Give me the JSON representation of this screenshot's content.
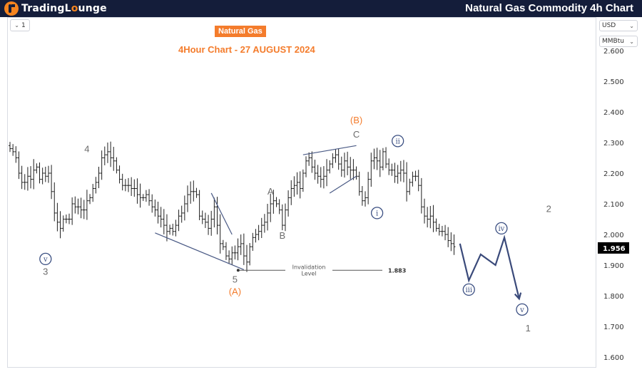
{
  "header": {
    "logo_left": "TradingL",
    "logo_right": "unge",
    "title": "Natural Gas Commodity 4h Chart"
  },
  "toolbar": {
    "interval": "1",
    "currency": "USD",
    "unit": "MMBtu"
  },
  "chart_title": {
    "badge": "Natural Gas",
    "subtitle": "4Hour Chart - 27 AUGUST 2024"
  },
  "colors": {
    "bar": "#1f1f1f",
    "wave_line": "#4a5a85",
    "projection": "#3a4a7a",
    "orange": "#f47c2c",
    "gray_label": "#6b6b6b",
    "circle_label": "#3b4f82",
    "price_tag": "#000000"
  },
  "chart_data": {
    "type": "ohlc",
    "yscale": "linear",
    "ylim": [
      1.6,
      2.6
    ],
    "yticks": [
      "1.600",
      "1.700",
      "1.800",
      "1.900",
      "2.000",
      "2.100",
      "2.200",
      "2.300",
      "2.400",
      "2.500",
      "2.600"
    ],
    "last_price": "1.956",
    "series": [
      {
        "name": "",
        "closes": [
          2.28,
          2.27,
          2.25,
          2.2,
          2.17,
          2.17,
          2.19,
          2.18,
          2.21,
          2.22,
          2.18,
          2.2,
          2.19,
          2.2,
          2.14,
          2.07,
          2.04,
          2.02,
          2.05,
          2.05,
          2.05,
          2.1,
          2.09,
          2.09,
          2.08,
          2.08,
          2.11,
          2.12,
          2.15,
          2.17,
          2.2,
          2.25,
          2.26,
          2.27,
          2.25,
          2.24,
          2.21,
          2.18,
          2.16,
          2.16,
          2.16,
          2.15,
          2.15,
          2.13,
          2.12,
          2.12,
          2.13,
          2.11,
          2.09,
          2.08,
          2.06,
          2.05,
          2.03,
          2.01,
          2.02,
          2.01,
          2.03,
          2.06,
          2.07,
          2.1,
          2.13,
          2.14,
          2.14,
          2.13,
          2.06,
          2.05,
          2.04,
          2.02,
          2.05,
          2.09,
          2.03,
          1.97,
          1.96,
          1.93,
          1.92,
          1.94,
          1.94,
          1.96,
          1.97,
          1.93,
          1.91,
          1.96,
          1.99,
          2.0,
          2.01,
          2.03,
          2.04,
          2.07,
          2.1,
          2.11,
          2.1,
          2.08,
          2.03,
          2.08,
          2.12,
          2.15,
          2.16,
          2.17,
          2.15,
          2.2,
          2.24,
          2.25,
          2.22,
          2.2,
          2.19,
          2.18,
          2.19,
          2.21,
          2.23,
          2.25,
          2.26,
          2.23,
          2.21,
          2.24,
          2.22,
          2.21,
          2.21,
          2.19,
          2.14,
          2.11,
          2.12,
          2.18,
          2.24,
          2.25,
          2.24,
          2.22,
          2.27,
          2.23,
          2.21,
          2.21,
          2.19,
          2.2,
          2.21,
          2.2,
          2.14,
          2.17,
          2.19,
          2.19,
          2.16,
          2.09,
          2.06,
          2.05,
          2.06,
          2.04,
          2.02,
          2.01,
          2.01,
          2.0,
          1.98,
          1.97,
          1.96
        ]
      }
    ],
    "invalidation": {
      "label_line1": "Invalidation",
      "label_line2": "Level",
      "value": "1.883",
      "level": 1.883
    },
    "wave_labels": [
      {
        "text": "3",
        "style": "gray",
        "x_index": 12,
        "price": 1.88
      },
      {
        "text": "v",
        "style": "circle",
        "x_index": 12,
        "price": 1.92
      },
      {
        "text": "4",
        "style": "gray",
        "x_index": 26,
        "price": 2.28
      },
      {
        "text": "5",
        "style": "gray",
        "x_index": 76,
        "price": 1.855
      },
      {
        "text": "(A)",
        "style": "orange",
        "x_index": 76,
        "price": 1.815
      },
      {
        "text": "A",
        "style": "gray",
        "x_index": 88,
        "price": 2.142
      },
      {
        "text": "B",
        "style": "gray",
        "x_index": 92,
        "price": 1.998
      },
      {
        "text": "(B)",
        "style": "orange",
        "x_index": 117,
        "price": 2.375
      },
      {
        "text": "C",
        "style": "gray",
        "x_index": 117,
        "price": 2.328
      },
      {
        "text": "ii",
        "style": "circle",
        "x_index": 131,
        "price": 2.305
      },
      {
        "text": "i",
        "style": "circle",
        "x_index": 124,
        "price": 2.07
      },
      {
        "text": "2",
        "style": "gray",
        "x_index": 182,
        "price": 2.085
      },
      {
        "text": "iii",
        "style": "circle",
        "x_index": 155,
        "price": 1.82
      },
      {
        "text": "iv",
        "style": "circle",
        "x_index": 166,
        "price": 2.02
      },
      {
        "text": "v",
        "style": "circle",
        "x_index": 173,
        "price": 1.755
      },
      {
        "text": "1",
        "style": "gray",
        "x_index": 175,
        "price": 1.695
      }
    ],
    "trendlines": [
      {
        "from": [
          49,
          2.005
        ],
        "to": [
          79,
          1.885
        ]
      },
      {
        "from": [
          68,
          2.135
        ],
        "to": [
          75,
          2.0
        ]
      },
      {
        "from": [
          99,
          2.26
        ],
        "to": [
          117,
          2.29
        ]
      },
      {
        "from": [
          108,
          2.135
        ],
        "to": [
          117,
          2.19
        ]
      }
    ],
    "projection_path": [
      [
        152,
        1.97
      ],
      [
        155,
        1.85
      ],
      [
        159,
        1.935
      ],
      [
        164,
        1.9
      ],
      [
        167,
        1.99
      ],
      [
        172,
        1.79
      ]
    ]
  }
}
